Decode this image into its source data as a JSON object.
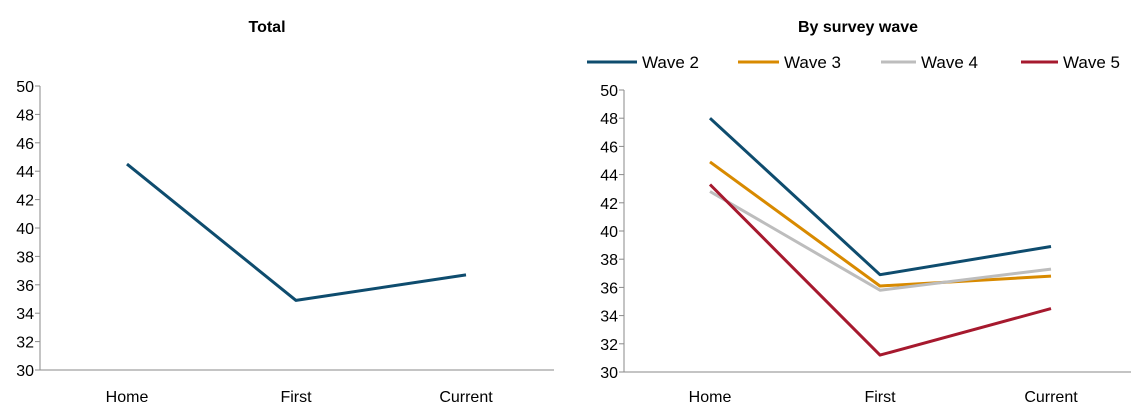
{
  "chart_data": [
    {
      "type": "line",
      "title": "Total",
      "categories": [
        "Home",
        "First",
        "Current"
      ],
      "ylim": [
        30,
        50
      ],
      "yticks": [
        30,
        32,
        34,
        36,
        38,
        40,
        42,
        44,
        46,
        48,
        50
      ],
      "grid": false,
      "legend": "none",
      "series": [
        {
          "values": [
            44.5,
            34.9,
            36.7
          ],
          "color": "#0e4c6e"
        }
      ]
    },
    {
      "type": "line",
      "title": "By survey wave",
      "categories": [
        "Home",
        "First",
        "Current"
      ],
      "ylim": [
        30,
        50
      ],
      "yticks": [
        30,
        32,
        34,
        36,
        38,
        40,
        42,
        44,
        46,
        48,
        50
      ],
      "grid": false,
      "legend": "top",
      "series": [
        {
          "name": "Wave 2",
          "values": [
            48.0,
            36.9,
            38.9
          ],
          "color": "#0e4c6e"
        },
        {
          "name": "Wave 3",
          "values": [
            44.9,
            36.1,
            36.8
          ],
          "color": "#d88a00"
        },
        {
          "name": "Wave 4",
          "values": [
            42.8,
            35.8,
            37.3
          ],
          "color": "#bdbdbd"
        },
        {
          "name": "Wave 5",
          "values": [
            43.3,
            31.2,
            34.5
          ],
          "color": "#a6192e"
        }
      ]
    }
  ]
}
